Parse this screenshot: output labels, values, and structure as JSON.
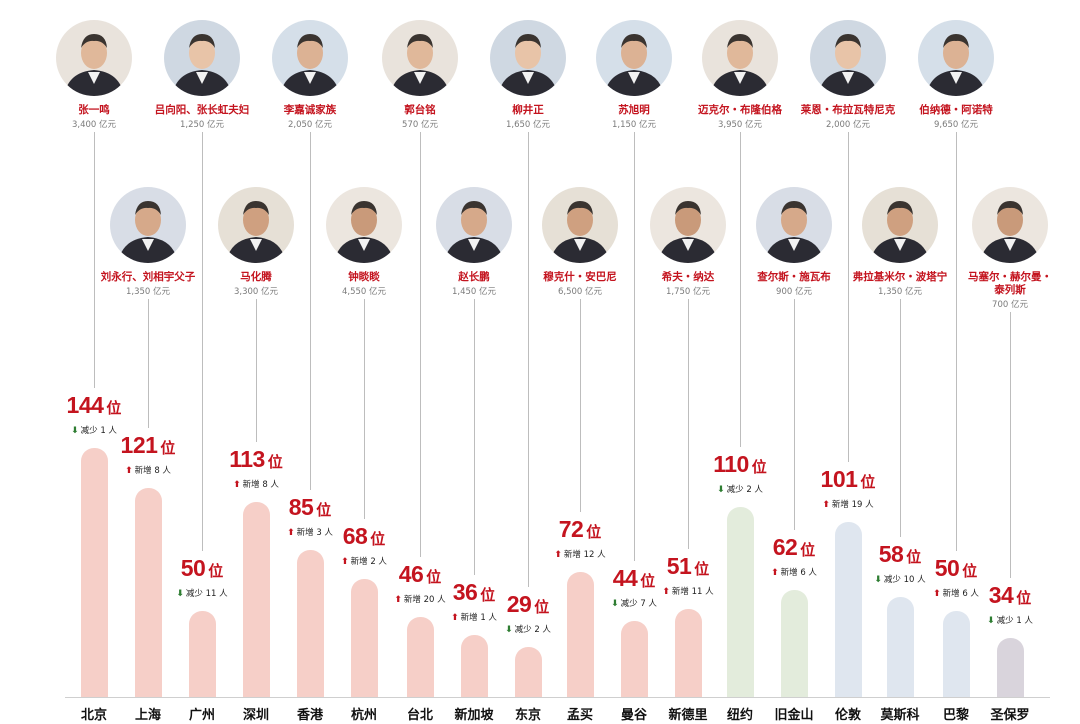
{
  "chart_data": {
    "type": "bar",
    "unit_label": "位",
    "colors": {
      "asia_bar": "#f6cfc8",
      "americas_bar": "#e3ecdc",
      "europe_bar": "#dfe6ef",
      "sao_paulo_bar": "#d9d4dc",
      "accent": "#c4141f",
      "up": "#c4141f",
      "down": "#2e7d32"
    },
    "cities": [
      {
        "name": "北京",
        "value": 144,
        "change": "减少 1 人",
        "dir": "down",
        "region": "asia",
        "person": "张一鸣",
        "worth": "3,400 亿元",
        "row": 1,
        "icon": "portrait-icon"
      },
      {
        "name": "上海",
        "value": 121,
        "change": "新增 8 人",
        "dir": "up",
        "region": "asia",
        "person": "刘永行、刘相宇父子",
        "worth": "1,350 亿元",
        "row": 2,
        "icon": "portrait-icon"
      },
      {
        "name": "广州",
        "value": 50,
        "change": "减少 11 人",
        "dir": "down",
        "region": "asia",
        "person": "吕向阳、张长虹夫妇",
        "worth": "1,250 亿元",
        "row": 1,
        "icon": "portrait-icon"
      },
      {
        "name": "深圳",
        "value": 113,
        "change": "新增 8 人",
        "dir": "up",
        "region": "asia",
        "person": "马化腾",
        "worth": "3,300 亿元",
        "row": 2,
        "icon": "portrait-icon"
      },
      {
        "name": "香港",
        "value": 85,
        "change": "新增 3 人",
        "dir": "up",
        "region": "asia",
        "person": "李嘉诚家族",
        "worth": "2,050 亿元",
        "row": 1,
        "icon": "portrait-icon"
      },
      {
        "name": "杭州",
        "value": 68,
        "change": "新增 2 人",
        "dir": "up",
        "region": "asia",
        "person": "钟睒睒",
        "worth": "4,550 亿元",
        "row": 2,
        "icon": "portrait-icon"
      },
      {
        "name": "台北",
        "value": 46,
        "change": "新增 20 人",
        "dir": "up",
        "region": "asia",
        "person": "郭台铭",
        "worth": "570 亿元",
        "row": 1,
        "icon": "portrait-icon"
      },
      {
        "name": "新加坡",
        "value": 36,
        "change": "新增 1 人",
        "dir": "up",
        "region": "asia",
        "person": "赵长鹏",
        "worth": "1,450 亿元",
        "row": 2,
        "icon": "portrait-icon"
      },
      {
        "name": "东京",
        "value": 29,
        "change": "减少 2 人",
        "dir": "down",
        "region": "asia",
        "person": "柳井正",
        "worth": "1,650 亿元",
        "row": 1,
        "icon": "portrait-icon"
      },
      {
        "name": "孟买",
        "value": 72,
        "change": "新增 12 人",
        "dir": "up",
        "region": "asia",
        "person": "穆克什・安巴尼",
        "worth": "6,500 亿元",
        "row": 2,
        "icon": "portrait-icon"
      },
      {
        "name": "曼谷",
        "value": 44,
        "change": "减少 7 人",
        "dir": "down",
        "region": "asia",
        "person": "苏旭明",
        "worth": "1,150 亿元",
        "row": 1,
        "icon": "portrait-icon"
      },
      {
        "name": "新德里",
        "value": 51,
        "change": "新增 11 人",
        "dir": "up",
        "region": "asia",
        "person": "希夫・纳达",
        "worth": "1,750 亿元",
        "row": 2,
        "icon": "portrait-icon"
      },
      {
        "name": "纽约",
        "value": 110,
        "change": "减少 2 人",
        "dir": "down",
        "region": "americas",
        "person": "迈克尔・布隆伯格",
        "worth": "3,950 亿元",
        "row": 1,
        "icon": "portrait-icon"
      },
      {
        "name": "旧金山",
        "value": 62,
        "change": "新增 6 人",
        "dir": "up",
        "region": "americas",
        "person": "查尔斯・施瓦布",
        "worth": "900 亿元",
        "row": 2,
        "icon": "portrait-icon"
      },
      {
        "name": "伦敦",
        "value": 101,
        "change": "新增 19 人",
        "dir": "up",
        "region": "europe",
        "person": "莱恩・布拉瓦特尼克",
        "worth": "2,000 亿元",
        "row": 1,
        "icon": "portrait-icon"
      },
      {
        "name": "莫斯科",
        "value": 58,
        "change": "减少 10 人",
        "dir": "down",
        "region": "europe",
        "person": "弗拉基米尔・波塔宁",
        "worth": "1,350 亿元",
        "row": 2,
        "icon": "portrait-icon"
      },
      {
        "name": "巴黎",
        "value": 50,
        "change": "新增 6 人",
        "dir": "up",
        "region": "europe",
        "person": "伯纳德・阿诺特",
        "worth": "9,650 亿元",
        "row": 1,
        "icon": "portrait-icon"
      },
      {
        "name": "圣保罗",
        "value": 34,
        "change": "减少 1 人",
        "dir": "down",
        "region": "sao_paulo",
        "person": "马塞尔・赫尔曼・\n泰列斯",
        "worth": "700 亿元",
        "row": 2,
        "icon": "portrait-icon"
      }
    ]
  }
}
